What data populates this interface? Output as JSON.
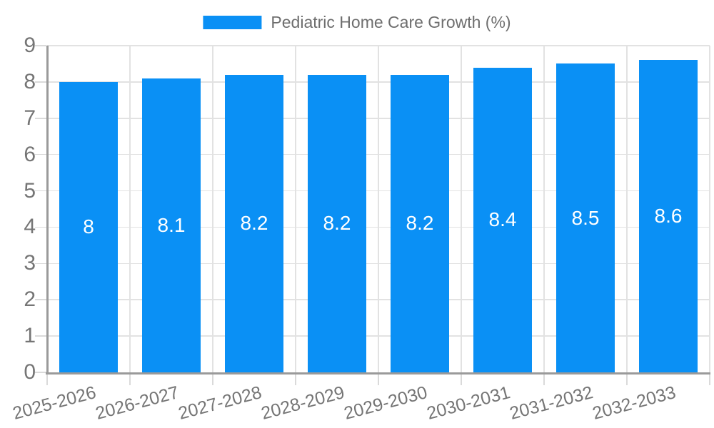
{
  "chart_data": {
    "type": "bar",
    "title": "Pediatric Home Care Growth (%)",
    "legend": {
      "position": "top",
      "label": "Pediatric Home Care Growth (%)"
    },
    "categories": [
      "2025-2026",
      "2026-2027",
      "2027-2028",
      "2028-2029",
      "2029-2030",
      "2030-2031",
      "2031-2032",
      "2032-2033"
    ],
    "series": [
      {
        "name": "Pediatric Home Care Growth (%)",
        "values": [
          8,
          8.1,
          8.2,
          8.2,
          8.2,
          8.4,
          8.5,
          8.6
        ]
      }
    ],
    "value_labels": [
      "8",
      "8.1",
      "8.2",
      "8.2",
      "8.2",
      "8.4",
      "8.5",
      "8.6"
    ],
    "xlabel": "",
    "ylabel": "",
    "ylim": [
      0,
      9
    ],
    "ytick_step": 1,
    "yticks": [
      "0",
      "1",
      "2",
      "3",
      "4",
      "5",
      "6",
      "7",
      "8",
      "9"
    ],
    "grid": true
  },
  "colors": {
    "bar": "#0a90f5",
    "grid": "#e2e2e2",
    "tick": "#dadada",
    "axis_line": "#9a9a9a",
    "axis_label": "#757575",
    "legend_text": "#6e6e6e",
    "value_label": "#ffffff",
    "background": "#ffffff"
  }
}
